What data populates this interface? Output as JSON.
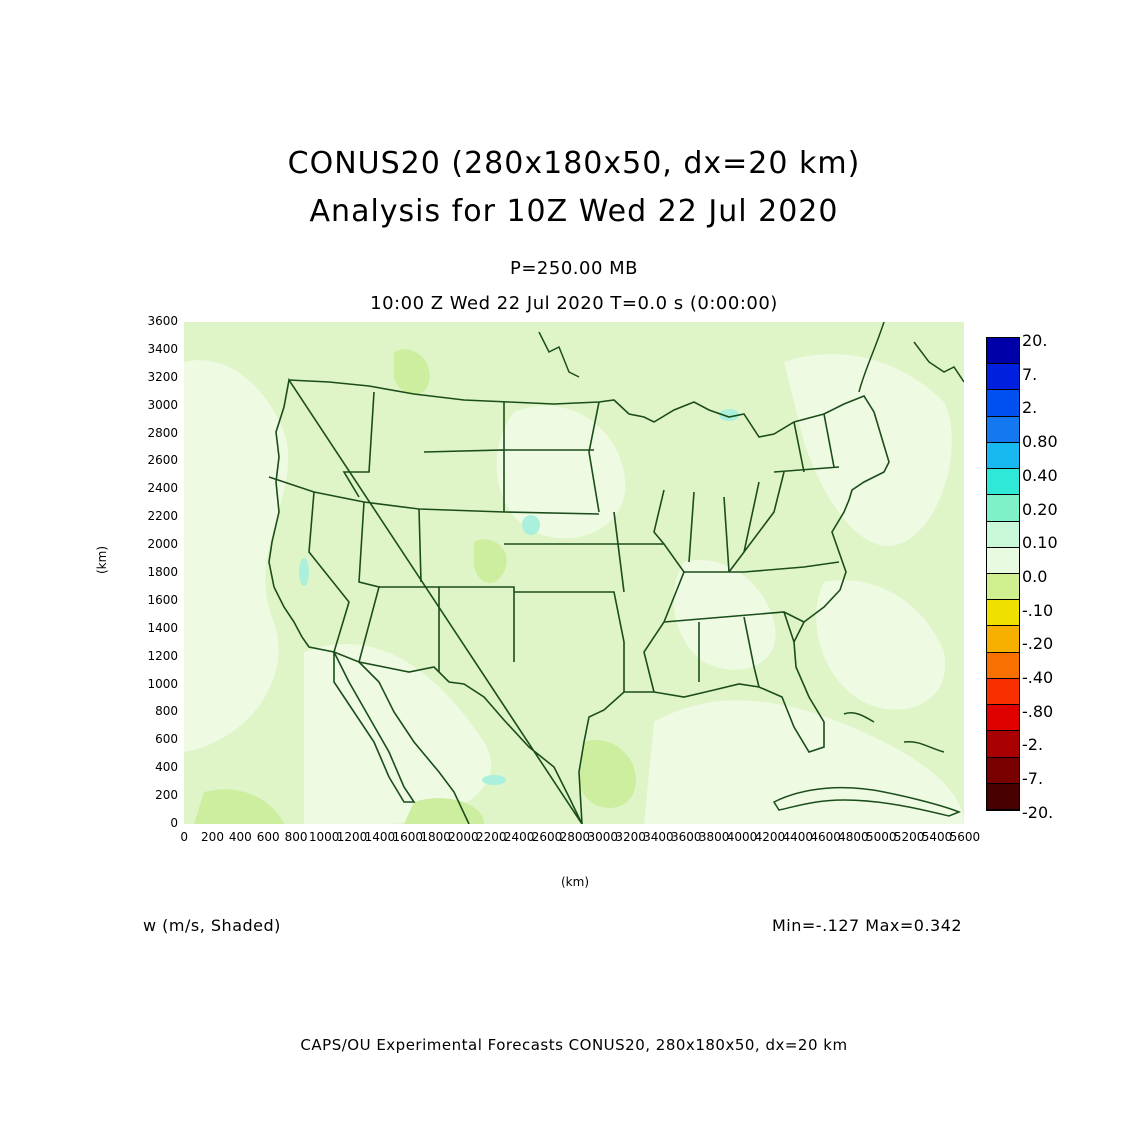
{
  "title": {
    "line1": "CONUS20 (280x180x50, dx=20 km)",
    "line2": "Analysis for 10Z Wed 22 Jul 2020"
  },
  "level": "P=250.00 MB",
  "time_line": "10:00 Z Wed 22 Jul 2020   T=0.0 s (0:00:00)",
  "axes": {
    "ylabel": "(km)",
    "xlabel": "(km)",
    "yticks": [
      "0",
      "200",
      "400",
      "600",
      "800",
      "1000",
      "1200",
      "1400",
      "1600",
      "1800",
      "2000",
      "2200",
      "2400",
      "2600",
      "2800",
      "3000",
      "3200",
      "3400",
      "3600"
    ],
    "xticks": [
      "0",
      "200",
      "400",
      "600",
      "800",
      "1000",
      "1200",
      "1400",
      "1600",
      "1800",
      "2000",
      "2200",
      "2400",
      "2600",
      "2800",
      "3000",
      "3200",
      "3400",
      "3600",
      "3800",
      "4000",
      "4200",
      "4400",
      "4600",
      "4800",
      "5000",
      "5200",
      "5400",
      "5600"
    ],
    "xlim": [
      0,
      5600
    ],
    "ylim": [
      0,
      3600
    ]
  },
  "colorbar": {
    "labels": [
      "20.",
      "7.",
      "2.",
      "0.80",
      "0.40",
      "0.20",
      "0.10",
      "0.0",
      "-.10",
      "-.20",
      "-.40",
      "-.80",
      "-2.",
      "-7.",
      "-20."
    ],
    "colors": [
      "#0000a8",
      "#0020e0",
      "#0050f0",
      "#1478f0",
      "#18b8f0",
      "#30e8d8",
      "#80f0c8",
      "#c8f8d8",
      "#e8fae0",
      "#d0f090",
      "#f0e000",
      "#f8b000",
      "#f87000",
      "#f83000",
      "#e00000",
      "#a80000",
      "#780000",
      "#480000"
    ]
  },
  "field_label": "w (m/s, Shaded)",
  "minmax": "Min=-.127  Max=0.342",
  "footer": "CAPS/OU Experimental Forecasts  CONUS20, 280x180x50, dx=20 km",
  "colors": {
    "field_base": "#dff5c8",
    "field_light": "#eefae2",
    "field_green": "#cdee9e",
    "boundary": "#1b4d1b"
  }
}
